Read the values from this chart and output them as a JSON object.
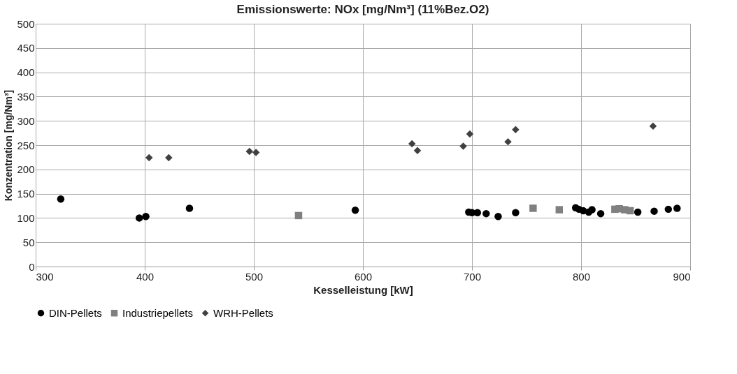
{
  "chart_data": {
    "type": "scatter",
    "title": "Emissionswerte: NOx [mg/Nm³] (11%Bez.O2)",
    "xlabel": "Kesselleistung [kW]",
    "ylabel": "Konzentration [mg/Nm³]",
    "xlim": [
      300,
      900
    ],
    "xticks": [
      300,
      400,
      500,
      600,
      700,
      800,
      900
    ],
    "ylim": [
      0,
      500
    ],
    "yticks": [
      0,
      50,
      100,
      150,
      200,
      250,
      300,
      350,
      400,
      450,
      500
    ],
    "grid": true,
    "legend": "bottom",
    "series": [
      {
        "name": "DIN-Pellets",
        "color": "#000000",
        "marker": "circle",
        "x": [
          323,
          395,
          401,
          441,
          593,
          697,
          700,
          705,
          713,
          724,
          740,
          795,
          798,
          802,
          807,
          810,
          818,
          852,
          867,
          880,
          888
        ],
        "values": [
          139,
          100,
          103,
          120,
          116,
          112,
          111,
          111,
          109,
          103,
          111,
          121,
          118,
          115,
          112,
          117,
          109,
          112,
          114,
          118,
          120
        ]
      },
      {
        "name": "Industriepellets",
        "color": "#808080",
        "marker": "square",
        "x": [
          541,
          756,
          780,
          831,
          835,
          840,
          845
        ],
        "values": [
          105,
          120,
          117,
          118,
          119,
          117,
          115
        ]
      },
      {
        "name": "WRH-Pellets",
        "color": "#404040",
        "marker": "diamond",
        "x": [
          404,
          422,
          496,
          502,
          645,
          650,
          692,
          698,
          733,
          740,
          866
        ],
        "values": [
          224,
          224,
          237,
          235,
          253,
          239,
          248,
          273,
          257,
          282,
          289
        ]
      }
    ]
  }
}
